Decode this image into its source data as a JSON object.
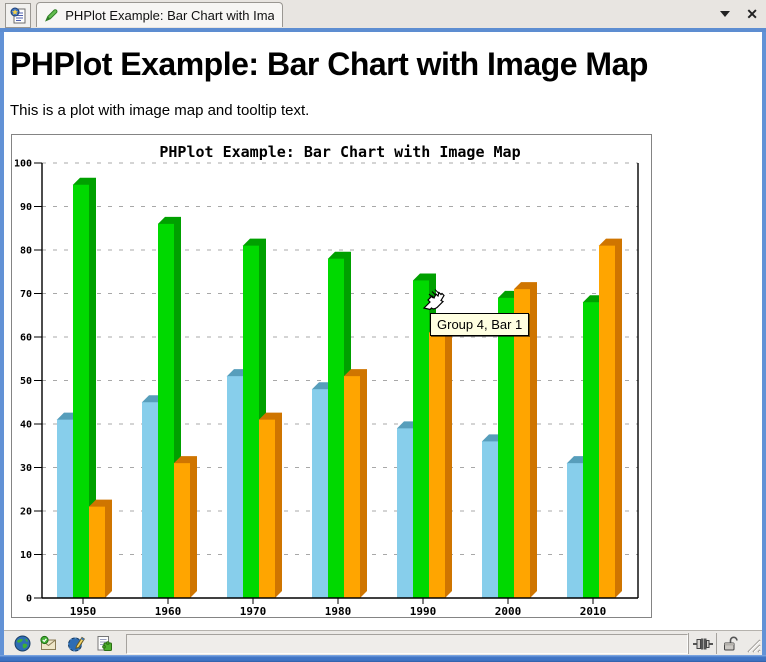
{
  "tabbar": {
    "tab_title": "PHPlot Example: Bar Chart with Ima...",
    "icons": {
      "tab_list": "tab-list-document-icon",
      "favicon": "green-pen-icon",
      "menu": "caret-down-icon",
      "close": "close-x-icon"
    }
  },
  "page": {
    "heading": "PHPlot Example: Bar Chart with Image Map",
    "intro": "This is a plot with image map and tooltip text."
  },
  "tooltip": {
    "text": "Group 4, Bar 1"
  },
  "cursor": {
    "icon": "pointing-hand-cursor"
  },
  "statusbar": {
    "left_icons": [
      "globe-icon",
      "mail-icon",
      "edit-globe-icon",
      "document-puzzle-icon"
    ],
    "right_icons": [
      "plug-connector-icon",
      "open-padlock-icon",
      "resize-grip-icon"
    ],
    "status_text": ""
  },
  "colors": {
    "accent_blue": "#5d8dd1",
    "frame_blue": "#3f74c4",
    "tabbar_bg": "#e8e5e1",
    "statusbar_bg": "#eceae7",
    "tooltip_bg": "#ffffe1",
    "grid_gray": "#a8a8a8"
  },
  "chart_data": {
    "type": "bar",
    "title": "PHPlot Example: Bar Chart with Image Map",
    "categories": [
      "1950",
      "1960",
      "1970",
      "1980",
      "1990",
      "2000",
      "2010"
    ],
    "series": [
      {
        "name": "bar-0",
        "color": "#87CEEB",
        "shade_color": "#579EBB",
        "values": [
          41,
          45,
          51,
          48,
          39,
          36,
          31
        ]
      },
      {
        "name": "bar-1",
        "color": "#00D900",
        "shade_color": "#00A000",
        "values": [
          95,
          86,
          81,
          78,
          73,
          69,
          68
        ]
      },
      {
        "name": "bar-2",
        "color": "#FFA500",
        "shade_color": "#CF7500",
        "values": [
          21,
          31,
          41,
          51,
          61,
          71,
          81
        ]
      }
    ],
    "xlabel": "",
    "ylabel": "",
    "ylim": [
      0,
      100
    ],
    "ytick_step": 10,
    "grid": "horizontal-dashed",
    "legend_position": "none",
    "bar_style": "3d-shaded"
  }
}
